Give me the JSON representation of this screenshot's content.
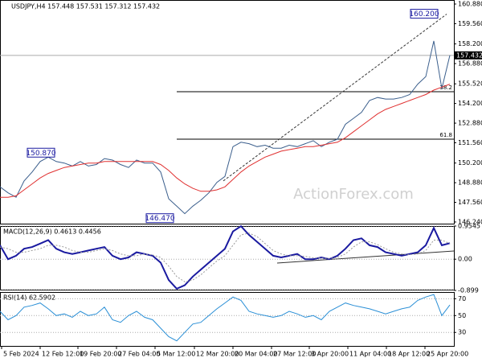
{
  "chart_data": [
    {
      "type": "line",
      "title": "USDJPY,H4 157.448 157.531 157.312 157.432",
      "watermark": "ActionForex.com",
      "xlim": [
        0,
        56.5
      ],
      "ylim": [
        146.13,
        161.15
      ],
      "yticks": [
        {
          "value": 160.88,
          "label": "160.880"
        },
        {
          "value": 159.56,
          "label": "159.560"
        },
        {
          "value": 158.2,
          "label": "158.200"
        },
        {
          "value": 156.88,
          "label": "156.880"
        },
        {
          "value": 155.52,
          "label": "155.520"
        },
        {
          "value": 154.2,
          "label": "154.200"
        },
        {
          "value": 152.88,
          "label": "152.880"
        },
        {
          "value": 151.56,
          "label": "151.560"
        },
        {
          "value": 150.2,
          "label": "150.200"
        },
        {
          "value": 148.88,
          "label": "148.880"
        },
        {
          "value": 147.56,
          "label": "147.560"
        },
        {
          "value": 146.24,
          "label": "146.240"
        }
      ],
      "series": [
        {
          "name": "USDJPY",
          "color": "#3a5e8c",
          "values": [
            148.6,
            148.2,
            147.9,
            149.0,
            149.6,
            150.3,
            150.6,
            150.3,
            150.2,
            150.0,
            150.3,
            150.0,
            150.1,
            150.5,
            150.4,
            150.1,
            149.9,
            150.4,
            150.2,
            150.2,
            149.6,
            147.8,
            147.3,
            146.8,
            147.3,
            147.7,
            148.2,
            148.9,
            149.3,
            151.3,
            151.6,
            151.5,
            151.3,
            151.4,
            151.2,
            151.2,
            151.4,
            151.3,
            151.5,
            151.7,
            151.3,
            151.6,
            151.8,
            152.8,
            153.2,
            153.6,
            154.4,
            154.6,
            154.5,
            154.5,
            154.6,
            154.8,
            155.5,
            156.0,
            158.4,
            155.2,
            157.432
          ]
        },
        {
          "name": "MA",
          "color": "#e03030",
          "values": [
            147.9,
            147.9,
            148.0,
            148.4,
            148.8,
            149.2,
            149.5,
            149.7,
            149.9,
            150.0,
            150.1,
            150.2,
            150.2,
            150.3,
            150.3,
            150.3,
            150.3,
            150.3,
            150.3,
            150.3,
            150.1,
            149.7,
            149.2,
            148.8,
            148.5,
            148.3,
            148.3,
            148.4,
            148.6,
            149.1,
            149.6,
            150.0,
            150.3,
            150.6,
            150.8,
            151.0,
            151.1,
            151.2,
            151.3,
            151.3,
            151.4,
            151.5,
            151.6,
            151.9,
            152.3,
            152.7,
            153.1,
            153.5,
            153.8,
            154.0,
            154.2,
            154.4,
            154.6,
            154.8,
            155.1,
            155.3,
            155.5
          ]
        }
      ],
      "last_price": {
        "value": 157.432,
        "label": "157.432"
      },
      "annotations": [
        {
          "label": "160.200",
          "x": 54.5,
          "y": 160.2
        },
        {
          "label": "150.870",
          "x": 6.8,
          "y": 150.87
        },
        {
          "label": "146.470",
          "x": 21.6,
          "y": 146.47
        }
      ],
      "levels": [
        {
          "label": "38.2",
          "value": 154.99,
          "x_start": 22
        },
        {
          "label": "61.8",
          "value": 151.8,
          "x_start": 22
        }
      ],
      "trendline": {
        "x": [
          27.8,
          55.6
        ],
        "y": [
          149.0,
          160.2
        ]
      }
    },
    {
      "type": "line",
      "title": "MACD(12,26,9) 0.4613 0.4456",
      "xlim": [
        0,
        56.5
      ],
      "ylim": [
        -0.899,
        0.9545
      ],
      "yticks": [
        0.9545,
        {
          "value": 0,
          "label": "0.00"
        },
        -0.899
      ],
      "series": [
        {
          "name": "MACD",
          "color": "#1a1aa0",
          "values": [
            0.4,
            0.0,
            0.1,
            0.3,
            0.35,
            0.45,
            0.55,
            0.3,
            0.2,
            0.15,
            0.2,
            0.25,
            0.3,
            0.35,
            0.1,
            0.0,
            0.05,
            0.2,
            0.15,
            0.1,
            -0.1,
            -0.6,
            -0.85,
            -0.75,
            -0.5,
            -0.3,
            -0.1,
            0.1,
            0.3,
            0.8,
            0.95,
            0.7,
            0.5,
            0.3,
            0.1,
            0.05,
            0.1,
            0.15,
            0.0,
            0.0,
            0.05,
            0.0,
            0.1,
            0.3,
            0.55,
            0.6,
            0.4,
            0.35,
            0.2,
            0.15,
            0.1,
            0.15,
            0.2,
            0.4,
            0.9,
            0.4,
            0.46
          ]
        },
        {
          "name": "Signal",
          "color": "#999999",
          "values": [
            0.35,
            0.3,
            0.2,
            0.2,
            0.25,
            0.3,
            0.4,
            0.4,
            0.35,
            0.25,
            0.2,
            0.2,
            0.25,
            0.3,
            0.25,
            0.15,
            0.1,
            0.1,
            0.15,
            0.12,
            0.05,
            -0.2,
            -0.5,
            -0.65,
            -0.6,
            -0.45,
            -0.25,
            -0.05,
            0.1,
            0.4,
            0.7,
            0.75,
            0.65,
            0.45,
            0.25,
            0.15,
            0.1,
            0.1,
            0.08,
            0.04,
            0.03,
            0.02,
            0.05,
            0.15,
            0.35,
            0.5,
            0.5,
            0.42,
            0.3,
            0.2,
            0.15,
            0.13,
            0.15,
            0.25,
            0.55,
            0.55,
            0.45
          ]
        }
      ]
    },
    {
      "type": "line",
      "title": "RSI(14) 62.5902",
      "xlim": [
        0,
        56.5
      ],
      "ylim": [
        14,
        77
      ],
      "yticks": [
        70,
        50,
        30
      ],
      "xticks": [
        {
          "value": 0.2,
          "label": "5 Feb 2024"
        },
        {
          "value": 5,
          "label": "12 Feb 12:00"
        },
        {
          "value": 9.7,
          "label": "19 Feb 20:00"
        },
        {
          "value": 14.5,
          "label": "27 Feb 04:00"
        },
        {
          "value": 19.3,
          "label": "5 Mar 12:00"
        },
        {
          "value": 24.2,
          "label": "12 Mar 20:00"
        },
        {
          "value": 29,
          "label": "20 Mar 04:00"
        },
        {
          "value": 33.8,
          "label": "27 Mar 12:00"
        },
        {
          "value": 38.5,
          "label": "3 Apr 20:00"
        },
        {
          "value": 43.3,
          "label": "11 Apr 04:00"
        },
        {
          "value": 48.1,
          "label": "18 Apr 12:00"
        },
        {
          "value": 52.9,
          "label": "25 Apr 20:00"
        }
      ],
      "series": [
        {
          "name": "RSI",
          "color": "#2a8fd6",
          "values": [
            55,
            45,
            50,
            60,
            62,
            65,
            58,
            50,
            52,
            48,
            55,
            50,
            52,
            60,
            45,
            42,
            50,
            55,
            48,
            45,
            35,
            25,
            20,
            30,
            40,
            42,
            50,
            58,
            65,
            72,
            68,
            55,
            52,
            50,
            48,
            50,
            55,
            52,
            48,
            50,
            45,
            55,
            60,
            65,
            62,
            60,
            58,
            55,
            52,
            55,
            58,
            60,
            68,
            72,
            75,
            50,
            62.59
          ]
        }
      ]
    }
  ]
}
